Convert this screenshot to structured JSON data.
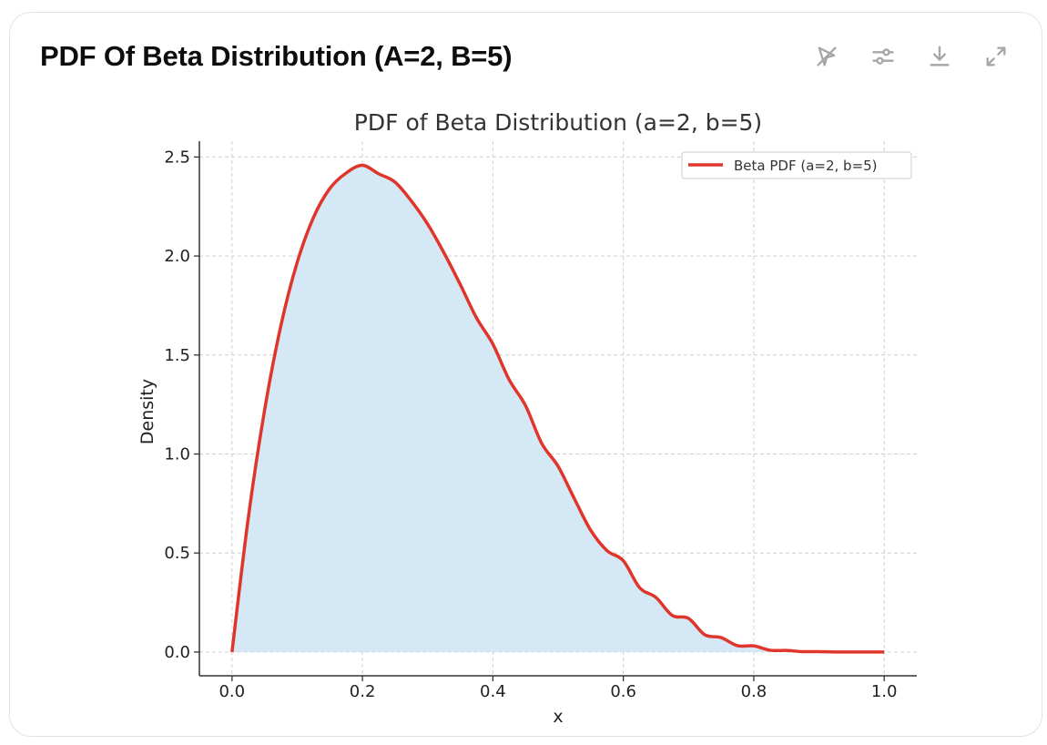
{
  "card": {
    "title": "PDF Of Beta Distribution (A=2, B=5)"
  },
  "toolbar": {
    "icons": [
      "interactive-toggle-icon",
      "chart-settings-icon",
      "download-icon",
      "expand-icon"
    ]
  },
  "colors": {
    "line": "#e0352b",
    "fill": "#d4e8f5",
    "grid": "#cfcfcf",
    "axis": "#333333",
    "text": "#222222"
  },
  "chart_data": {
    "type": "area",
    "title": "PDF of Beta Distribution (a=2, b=5)",
    "xlabel": "x",
    "ylabel": "Density",
    "xlim": [
      -0.05,
      1.05
    ],
    "ylim": [
      -0.12,
      2.58
    ],
    "xticks": [
      "0.0",
      "0.2",
      "0.4",
      "0.6",
      "0.8",
      "1.0"
    ],
    "yticks": [
      "0.0",
      "0.5",
      "1.0",
      "1.5",
      "2.0",
      "2.5"
    ],
    "grid": true,
    "legend_position": "top-right",
    "series": [
      {
        "name": "Beta PDF (a=2, b=5)",
        "x": [
          0.0,
          0.025,
          0.05,
          0.075,
          0.1,
          0.125,
          0.15,
          0.175,
          0.2,
          0.225,
          0.25,
          0.275,
          0.3,
          0.325,
          0.35,
          0.375,
          0.4,
          0.425,
          0.45,
          0.475,
          0.5,
          0.525,
          0.55,
          0.575,
          0.6,
          0.625,
          0.65,
          0.675,
          0.7,
          0.725,
          0.75,
          0.775,
          0.8,
          0.825,
          0.85,
          0.875,
          0.9,
          0.925,
          0.95,
          0.975,
          1.0
        ],
        "y": [
          0.0,
          0.678,
          1.222,
          1.649,
          1.968,
          2.195,
          2.341,
          2.419,
          2.458,
          2.415,
          2.373,
          2.278,
          2.161,
          2.016,
          1.856,
          1.687,
          1.555,
          1.375,
          1.245,
          1.053,
          0.938,
          0.774,
          0.615,
          0.512,
          0.461,
          0.325,
          0.276,
          0.185,
          0.17,
          0.087,
          0.073,
          0.032,
          0.031,
          0.009,
          0.008,
          0.002,
          0.002,
          0.0003,
          0.0,
          0.0,
          0.0
        ]
      }
    ]
  }
}
